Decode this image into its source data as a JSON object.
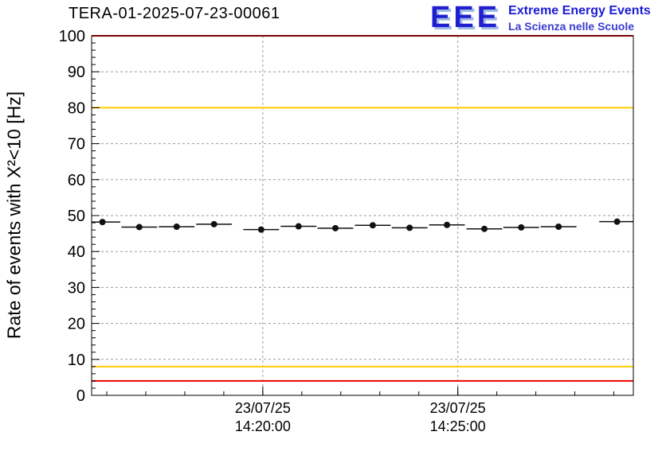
{
  "title": "TERA-01-2025-07-23-00061",
  "logo": {
    "acronym": "EEE",
    "line1": "Extreme Energy Events",
    "line2": "La Scienza nelle Scuole"
  },
  "chart_data": {
    "type": "line",
    "title": "TERA-01-2025-07-23-00061",
    "ylabel": "Rate of events with X²<10 [Hz]",
    "xlabel": "",
    "ylim": [
      0,
      100
    ],
    "y_tick_step": 10,
    "y_minor_step": 2,
    "grid": true,
    "legend_position": "none",
    "x_ticks": [
      {
        "frac": 0.316,
        "date": "23/07/25",
        "time": "14:20:00"
      },
      {
        "frac": 0.676,
        "date": "23/07/25",
        "time": "14:25:00"
      }
    ],
    "x_minor_per_major": 5,
    "reference_lines": [
      {
        "value": 100,
        "color": "#ee0000"
      },
      {
        "value": 80,
        "color": "#ffcc00"
      },
      {
        "value": 8,
        "color": "#ffcc00"
      },
      {
        "value": 4,
        "color": "#ee0000"
      }
    ],
    "series": [
      {
        "name": "rate",
        "color": "#111111",
        "x_frac": [
          0.02,
          0.088,
          0.157,
          0.226,
          0.313,
          0.382,
          0.45,
          0.519,
          0.587,
          0.656,
          0.725,
          0.793,
          0.862,
          0.97
        ],
        "values": [
          48.2,
          46.8,
          46.9,
          47.6,
          46.1,
          47.0,
          46.5,
          47.3,
          46.6,
          47.4,
          46.3,
          46.7,
          46.9,
          48.3
        ],
        "x_err_frac": 0.033,
        "y_err": 0.7
      }
    ]
  },
  "colors": {
    "grid": "#9a9a9a",
    "frame": "#000000",
    "background": "#ffffff",
    "tick_label": "#000000"
  }
}
